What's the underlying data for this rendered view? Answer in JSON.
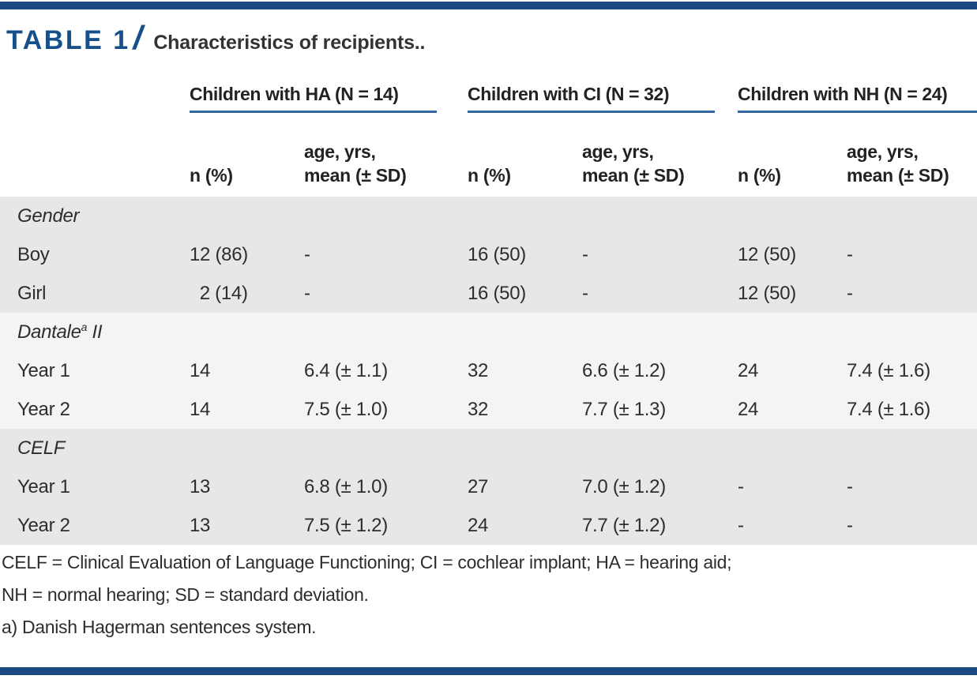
{
  "title": {
    "label": "TABLE 1",
    "slash": "/",
    "caption": "Characteristics of recipients.."
  },
  "colors": {
    "rule_navy": "#1c4a80",
    "title_blue": "#164f8a",
    "underline_blue": "#33689e",
    "band_dark": "#e7e7e7",
    "band_light": "#f4f4f4",
    "text": "#2d2d2d"
  },
  "table": {
    "groups": [
      {
        "label": "Children with HA (N = 14)"
      },
      {
        "label": "Children with CI (N = 32)"
      },
      {
        "label": "Children with NH (N = 24)"
      }
    ],
    "subheaders": {
      "n": "n (%)",
      "age_line1": "age, yrs,",
      "age_line2": "mean (± SD)"
    },
    "sections": [
      {
        "header": "Gender",
        "header_sup": "",
        "header_rest": "",
        "rows": [
          {
            "label": "Boy",
            "cells": [
              "12 (86)",
              "-",
              "16 (50)",
              "-",
              "12 (50)",
              "-"
            ]
          },
          {
            "label": "Girl",
            "cells": [
              "  2 (14)",
              "-",
              "16 (50)",
              "-",
              "12 (50)",
              "-"
            ]
          }
        ]
      },
      {
        "header": "Dantale",
        "header_sup": "a",
        "header_rest": " II",
        "rows": [
          {
            "label": "Year 1",
            "cells": [
              "14",
              "6.4 (± 1.1)",
              "32",
              "6.6 (± 1.2)",
              "24",
              "7.4 (± 1.6)"
            ]
          },
          {
            "label": "Year 2",
            "cells": [
              "14",
              "7.5 (± 1.0)",
              "32",
              "7.7 (± 1.3)",
              "24",
              "7.4 (± 1.6)"
            ]
          }
        ]
      },
      {
        "header": "CELF",
        "header_sup": "",
        "header_rest": "",
        "rows": [
          {
            "label": "Year 1",
            "cells": [
              "13",
              "6.8 (± 1.0)",
              "27",
              "7.0 (± 1.2)",
              "-",
              "-"
            ]
          },
          {
            "label": "Year 2",
            "cells": [
              "13",
              "7.5 (± 1.2)",
              "24",
              "7.7 (± 1.2)",
              "-",
              "-"
            ]
          }
        ]
      }
    ],
    "footnotes": [
      "CELF = Clinical Evaluation of Language Functioning; CI = cochlear implant; HA = hearing aid;",
      "NH = normal hearing; SD = standard deviation.",
      "a) Danish Hagerman sentences system."
    ]
  }
}
